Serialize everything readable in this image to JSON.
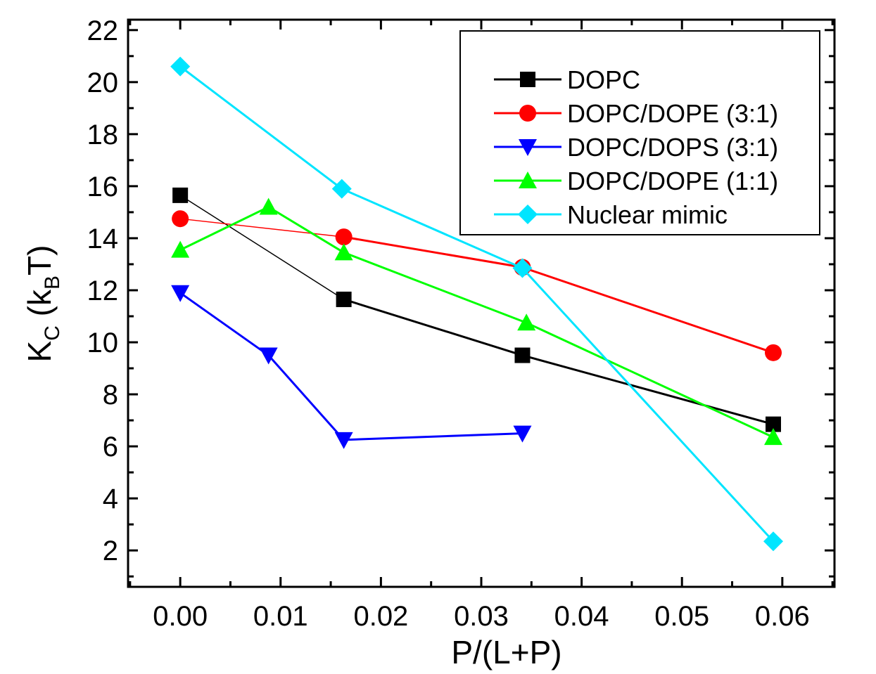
{
  "chart_data": {
    "type": "line",
    "title": "",
    "xlabel": "P/(L+P)",
    "ylabel": {
      "main": "K",
      "sub1": "C",
      "mid": " (k",
      "sub2": "B",
      "end": "T)"
    },
    "xlim": [
      -0.0052,
      0.0652
    ],
    "ylim": [
      0.6,
      22.4
    ],
    "x_ticks": [
      0.0,
      0.01,
      0.02,
      0.03,
      0.04,
      0.05,
      0.06
    ],
    "x_tick_labels": [
      "0.00",
      "0.01",
      "0.02",
      "0.03",
      "0.04",
      "0.05",
      "0.06"
    ],
    "y_ticks": [
      2,
      4,
      6,
      8,
      10,
      12,
      14,
      16,
      18,
      20,
      22
    ],
    "y_tick_labels": [
      "2",
      "4",
      "6",
      "8",
      "10",
      "12",
      "14",
      "16",
      "18",
      "20",
      "22"
    ],
    "grid": false,
    "legend_position": "top-right",
    "series": [
      {
        "name": "DOPC",
        "color": "#000000",
        "marker": "square",
        "x": [
          0.0,
          0.0163,
          0.0341,
          0.0591
        ],
        "y": [
          15.65,
          11.65,
          9.5,
          6.85
        ]
      },
      {
        "name": "DOPC/DOPE (3:1)",
        "color": "#ff0000",
        "marker": "circle",
        "x": [
          0.0,
          0.0163,
          0.0341,
          0.0591
        ],
        "y": [
          14.75,
          14.05,
          12.88,
          9.6
        ]
      },
      {
        "name": "DOPC/DOPS (3:1)",
        "color": "#0000ff",
        "marker": "triangle-down",
        "x": [
          0.0,
          0.0088,
          0.0163,
          0.0341
        ],
        "y": [
          11.9,
          9.5,
          6.25,
          6.5
        ]
      },
      {
        "name": "DOPC/DOPE (1:1)",
        "color": "#00ff00",
        "marker": "triangle-up",
        "x": [
          0.0,
          0.0088,
          0.0163,
          0.0345,
          0.0591
        ],
        "y": [
          13.55,
          15.2,
          13.45,
          10.75,
          6.35
        ]
      },
      {
        "name": "Nuclear mimic",
        "color": "#00e5ff",
        "marker": "diamond",
        "x": [
          0.0,
          0.0161,
          0.0341,
          0.0591
        ],
        "y": [
          20.6,
          15.9,
          12.85,
          2.35
        ]
      }
    ]
  }
}
